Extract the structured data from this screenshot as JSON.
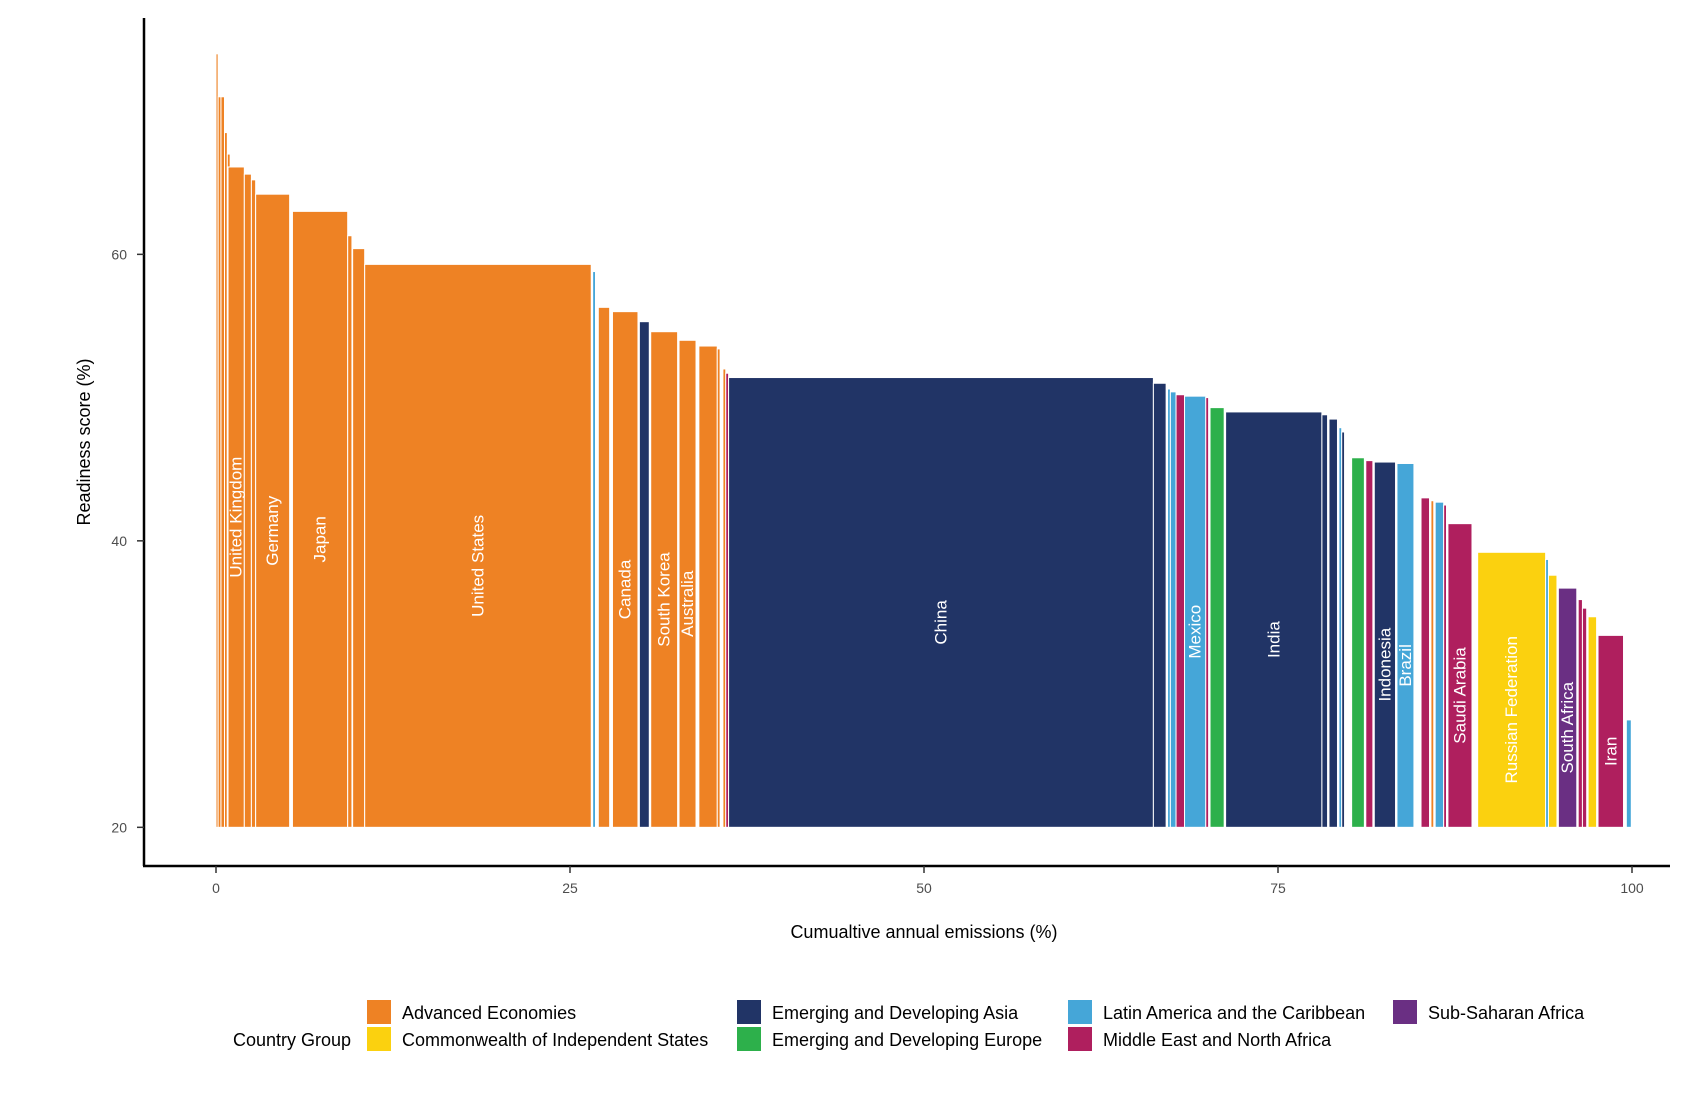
{
  "chart_data": {
    "type": "bar",
    "subtype": "variable-width (marimekko) bar chart",
    "xlabel": "Cumualtive annual emissions (%)",
    "ylabel": "Readiness score (%)",
    "xlim": [
      0,
      100
    ],
    "ylim": [
      17.3,
      76.5
    ],
    "x_ticks": [
      "0",
      "25",
      "50",
      "75",
      "100"
    ],
    "y_ticks": [
      "20",
      "40",
      "60"
    ],
    "baseline": 20,
    "grid": false,
    "legend": {
      "title": "Country Group",
      "position": "bottom",
      "items": [
        {
          "key": "ae",
          "label": "Advanced Economies"
        },
        {
          "key": "cis",
          "label": "Commonwealth of Independent States"
        },
        {
          "key": "eda",
          "label": "Emerging and Developing Asia"
        },
        {
          "key": "ede",
          "label": "Emerging and Developing Europe"
        },
        {
          "key": "lac",
          "label": "Latin America and the Caribbean"
        },
        {
          "key": "mena",
          "label": "Middle East and North Africa"
        },
        {
          "key": "ssa",
          "label": "Sub-Saharan Africa"
        }
      ]
    },
    "colors": {
      "ae": "#EE8224",
      "cis": "#FBD10F",
      "eda": "#213466",
      "ede": "#2DB04B",
      "lac": "#45A6D8",
      "mena": "#AF1F5E",
      "ssa": "#6A2F83"
    },
    "bars": [
      {
        "x0": 0.0,
        "x1": 0.15,
        "y": 74.0,
        "group": "ae",
        "label": ""
      },
      {
        "x0": 0.15,
        "x1": 0.35,
        "y": 71.0,
        "group": "ae",
        "label": ""
      },
      {
        "x0": 0.35,
        "x1": 0.6,
        "y": 71.0,
        "group": "ae",
        "label": ""
      },
      {
        "x0": 0.6,
        "x1": 0.8,
        "y": 68.5,
        "group": "ae",
        "label": ""
      },
      {
        "x0": 0.8,
        "x1": 1.0,
        "y": 67.0,
        "group": "ae",
        "label": ""
      },
      {
        "x0": 0.85,
        "x1": 2.0,
        "y": 66.1,
        "group": "ae",
        "label": "United Kingdom"
      },
      {
        "x0": 2.0,
        "x1": 2.5,
        "y": 65.6,
        "group": "ae",
        "label": ""
      },
      {
        "x0": 2.5,
        "x1": 2.8,
        "y": 65.2,
        "group": "ae",
        "label": ""
      },
      {
        "x0": 2.8,
        "x1": 5.2,
        "y": 64.2,
        "group": "ae",
        "label": "Germany"
      },
      {
        "x0": 5.4,
        "x1": 9.3,
        "y": 63.0,
        "group": "ae",
        "label": "Japan"
      },
      {
        "x0": 9.3,
        "x1": 9.6,
        "y": 61.3,
        "group": "ae",
        "label": ""
      },
      {
        "x0": 9.65,
        "x1": 10.5,
        "y": 60.4,
        "group": "ae",
        "label": ""
      },
      {
        "x0": 10.5,
        "x1": 26.5,
        "y": 59.3,
        "group": "ae",
        "label": "United States"
      },
      {
        "x0": 26.6,
        "x1": 26.8,
        "y": 58.8,
        "group": "lac",
        "label": ""
      },
      {
        "x0": 27.0,
        "x1": 27.8,
        "y": 56.3,
        "group": "ae",
        "label": ""
      },
      {
        "x0": 28.0,
        "x1": 29.8,
        "y": 56.0,
        "group": "ae",
        "label": "Canada"
      },
      {
        "x0": 29.9,
        "x1": 30.6,
        "y": 55.3,
        "group": "eda",
        "label": ""
      },
      {
        "x0": 30.7,
        "x1": 32.6,
        "y": 54.6,
        "group": "ae",
        "label": "South Korea"
      },
      {
        "x0": 32.7,
        "x1": 33.9,
        "y": 54.0,
        "group": "ae",
        "label": "Australia"
      },
      {
        "x0": 34.1,
        "x1": 35.4,
        "y": 53.6,
        "group": "ae",
        "label": ""
      },
      {
        "x0": 35.4,
        "x1": 35.6,
        "y": 53.4,
        "group": "ae",
        "label": ""
      },
      {
        "x0": 35.8,
        "x1": 36.0,
        "y": 52.0,
        "group": "ae",
        "label": ""
      },
      {
        "x0": 36.0,
        "x1": 36.2,
        "y": 51.7,
        "group": "mena",
        "label": ""
      },
      {
        "x0": 36.2,
        "x1": 66.2,
        "y": 51.4,
        "group": "eda",
        "label": "China"
      },
      {
        "x0": 66.2,
        "x1": 67.1,
        "y": 51.0,
        "group": "eda",
        "label": ""
      },
      {
        "x0": 67.2,
        "x1": 67.4,
        "y": 50.6,
        "group": "lac",
        "label": ""
      },
      {
        "x0": 67.4,
        "x1": 67.8,
        "y": 50.4,
        "group": "lac",
        "label": ""
      },
      {
        "x0": 67.8,
        "x1": 68.4,
        "y": 50.2,
        "group": "mena",
        "label": ""
      },
      {
        "x0": 68.4,
        "x1": 69.9,
        "y": 50.1,
        "group": "lac",
        "label": "Mexico"
      },
      {
        "x0": 69.9,
        "x1": 70.1,
        "y": 50.0,
        "group": "mena",
        "label": ""
      },
      {
        "x0": 70.2,
        "x1": 71.2,
        "y": 49.3,
        "group": "ede",
        "label": ""
      },
      {
        "x0": 71.3,
        "x1": 78.1,
        "y": 49.0,
        "group": "eda",
        "label": "India"
      },
      {
        "x0": 78.1,
        "x1": 78.5,
        "y": 48.8,
        "group": "eda",
        "label": ""
      },
      {
        "x0": 78.6,
        "x1": 79.2,
        "y": 48.5,
        "group": "eda",
        "label": ""
      },
      {
        "x0": 79.3,
        "x1": 79.5,
        "y": 47.9,
        "group": "lac",
        "label": ""
      },
      {
        "x0": 79.5,
        "x1": 79.7,
        "y": 47.6,
        "group": "eda",
        "label": ""
      },
      {
        "x0": 80.2,
        "x1": 81.1,
        "y": 45.8,
        "group": "ede",
        "label": ""
      },
      {
        "x0": 81.2,
        "x1": 81.7,
        "y": 45.6,
        "group": "mena",
        "label": ""
      },
      {
        "x0": 81.8,
        "x1": 83.3,
        "y": 45.5,
        "group": "eda",
        "label": "Indonesia"
      },
      {
        "x0": 83.4,
        "x1": 84.6,
        "y": 45.4,
        "group": "lac",
        "label": "Brazil"
      },
      {
        "x0": 85.1,
        "x1": 85.7,
        "y": 43.0,
        "group": "mena",
        "label": ""
      },
      {
        "x0": 85.8,
        "x1": 86.0,
        "y": 42.8,
        "group": "ae",
        "label": ""
      },
      {
        "x0": 86.1,
        "x1": 86.7,
        "y": 42.7,
        "group": "lac",
        "label": ""
      },
      {
        "x0": 86.7,
        "x1": 86.9,
        "y": 42.5,
        "group": "mena",
        "label": ""
      },
      {
        "x0": 87.0,
        "x1": 88.7,
        "y": 41.2,
        "group": "mena",
        "label": "Saudi Arabia"
      },
      {
        "x0": 89.1,
        "x1": 93.9,
        "y": 39.2,
        "group": "cis",
        "label": "Russian Federation"
      },
      {
        "x0": 93.9,
        "x1": 94.1,
        "y": 38.7,
        "group": "lac",
        "label": ""
      },
      {
        "x0": 94.1,
        "x1": 94.7,
        "y": 37.6,
        "group": "cis",
        "label": ""
      },
      {
        "x0": 94.8,
        "x1": 96.1,
        "y": 36.7,
        "group": "ssa",
        "label": "South Africa"
      },
      {
        "x0": 96.2,
        "x1": 96.5,
        "y": 35.9,
        "group": "mena",
        "label": ""
      },
      {
        "x0": 96.5,
        "x1": 96.8,
        "y": 35.3,
        "group": "mena",
        "label": ""
      },
      {
        "x0": 96.9,
        "x1": 97.5,
        "y": 34.7,
        "group": "cis",
        "label": ""
      },
      {
        "x0": 97.6,
        "x1": 99.4,
        "y": 33.4,
        "group": "mena",
        "label": "Iran"
      },
      {
        "x0": 99.6,
        "x1": 99.95,
        "y": 27.5,
        "group": "lac",
        "label": ""
      }
    ]
  }
}
